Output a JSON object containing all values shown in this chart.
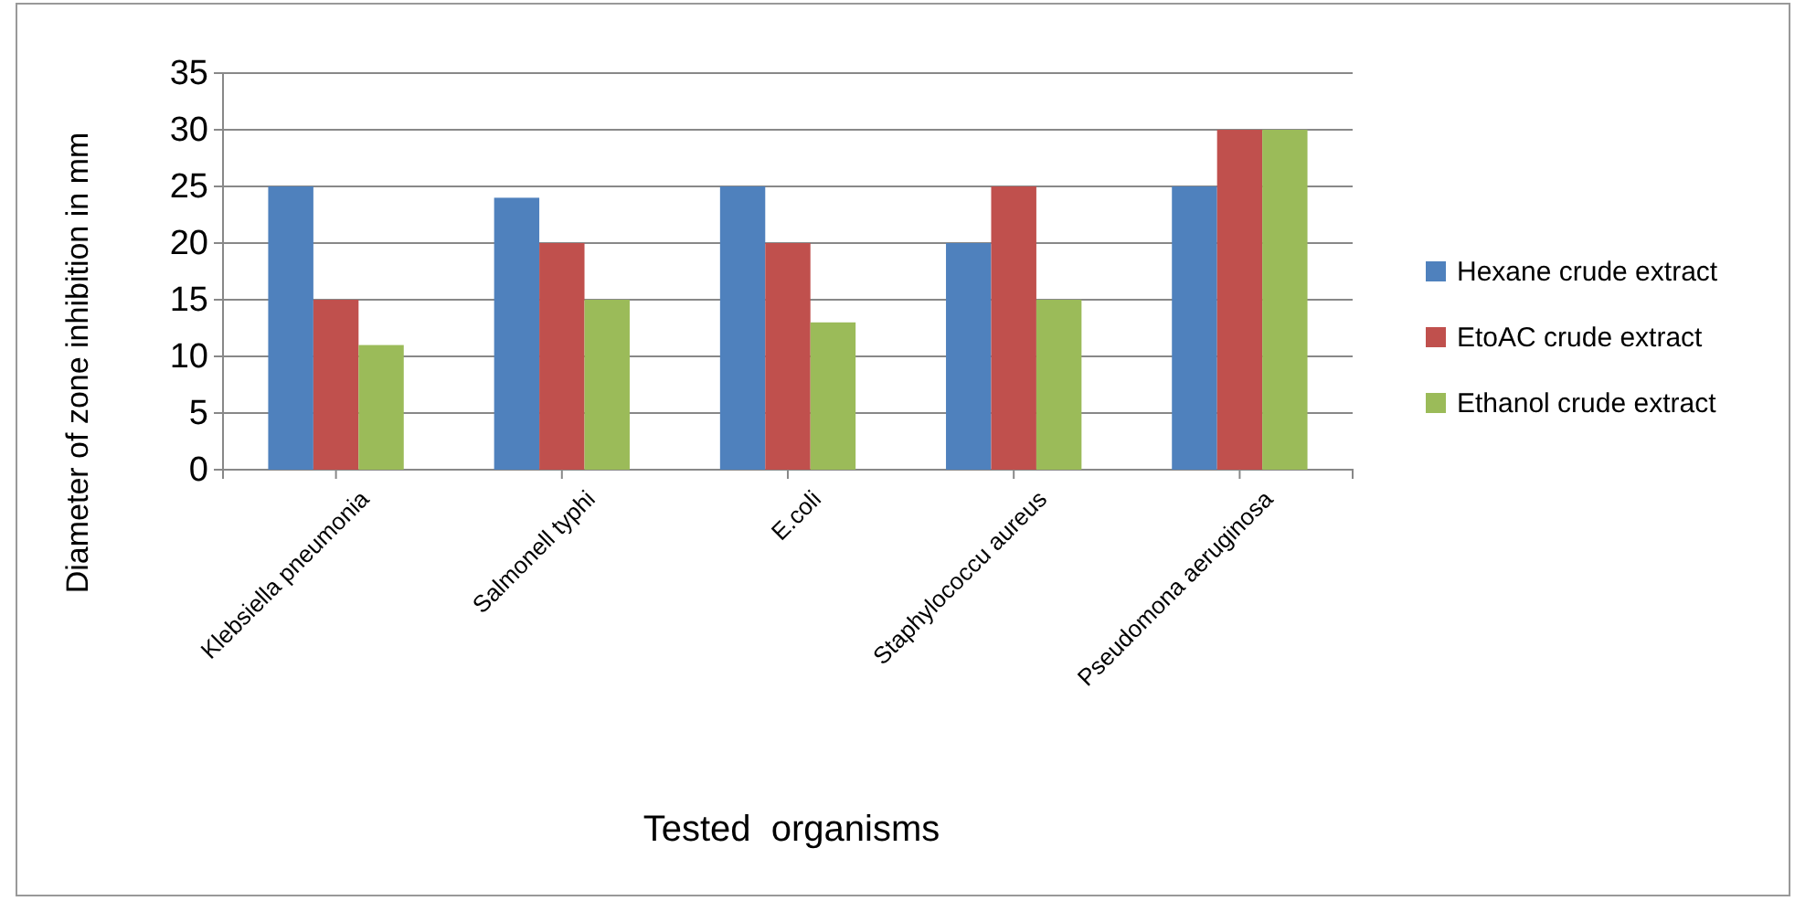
{
  "chart_data": {
    "type": "bar",
    "xlabel": "Tested  organisms",
    "ylabel": "Diameter of zone inhibition in mm",
    "categories": [
      "Klebsiella pneumonia",
      "Salmonell typhi",
      "E.coli",
      "Staphylococcu aureus",
      "Pseudomona aeruginosa"
    ],
    "series": [
      {
        "name": "Hexane crude extract",
        "color": "#4f81bd",
        "values": [
          25,
          24,
          25,
          20,
          25
        ]
      },
      {
        "name": "EtoAC crude extract",
        "color": "#c0504d",
        "values": [
          15,
          20,
          20,
          25,
          30
        ]
      },
      {
        "name": "Ethanol crude extract",
        "color": "#9bbb59",
        "values": [
          11,
          15,
          13,
          15,
          30
        ]
      }
    ],
    "ylim": [
      0,
      35
    ],
    "yticks": [
      0,
      5,
      10,
      15,
      20,
      25,
      30,
      35
    ],
    "grid": "y",
    "legend": "right"
  }
}
